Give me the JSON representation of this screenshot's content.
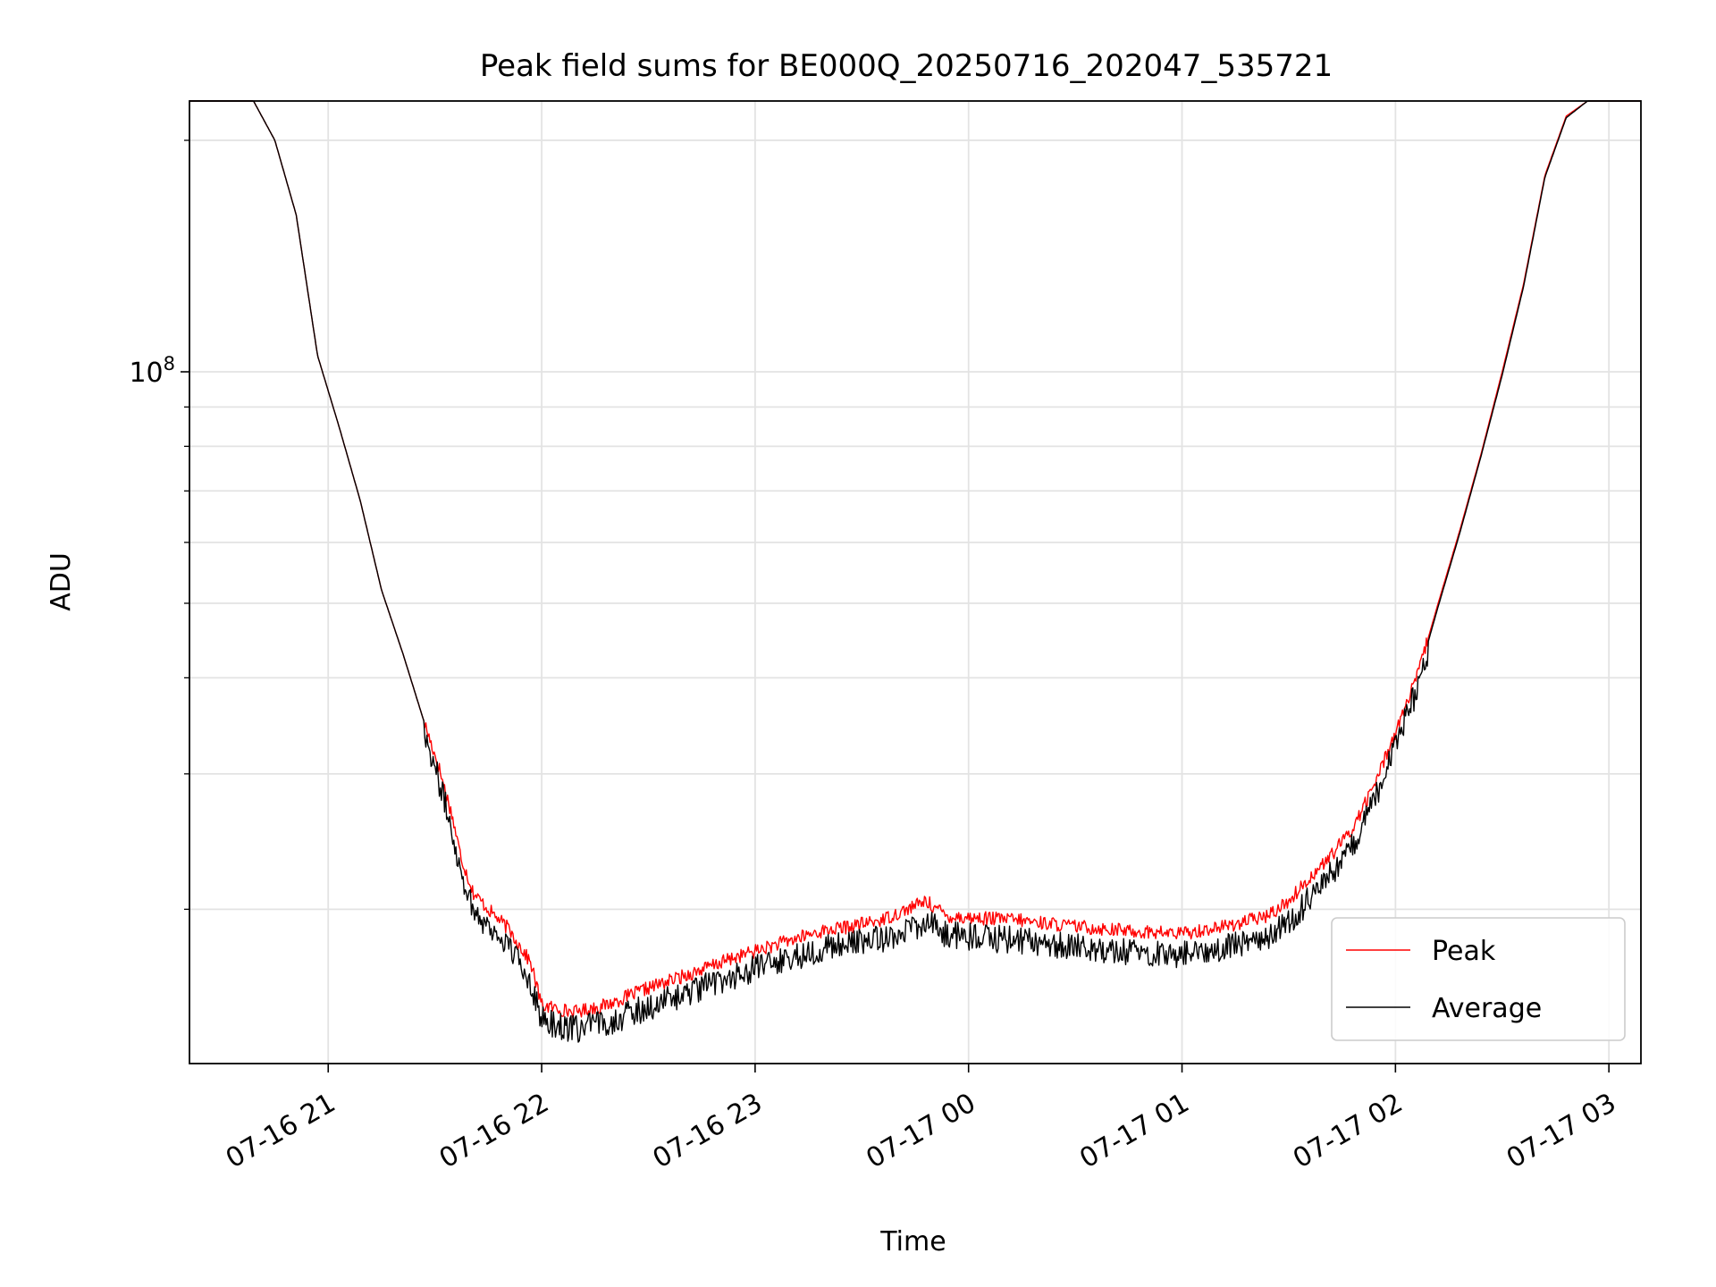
{
  "chart_data": {
    "type": "line",
    "title": "Peak field sums for BE000Q_20250716_202047_535721",
    "xlabel": "Time",
    "ylabel": "ADU",
    "x_ticks": [
      "07-16 21",
      "07-16 22",
      "07-16 23",
      "07-17 00",
      "07-17 01",
      "07-17 02",
      "07-17 03"
    ],
    "x_tick_hours": [
      21,
      22,
      23,
      24,
      25,
      26,
      27
    ],
    "xlim_hours": [
      20.35,
      27.15
    ],
    "yscale": "log",
    "ylim": [
      12600000,
      225000000
    ],
    "y_major_ticks": [
      {
        "value": 100000000,
        "label_base": "10",
        "label_exp": "8"
      }
    ],
    "y_minor_ticks": [
      20000000,
      30000000,
      40000000,
      50000000,
      60000000,
      70000000,
      80000000,
      90000000,
      200000000
    ],
    "grid": true,
    "legend_position": "lower right",
    "series": [
      {
        "name": "Peak",
        "color": "#ff0000",
        "noise": "low",
        "points": [
          [
            20.35,
            225000000
          ],
          [
            20.65,
            225000000
          ],
          [
            20.75,
            200000000
          ],
          [
            20.85,
            160000000
          ],
          [
            20.95,
            105000000
          ],
          [
            21.05,
            85000000
          ],
          [
            21.15,
            68000000
          ],
          [
            21.25,
            52000000
          ],
          [
            21.35,
            43000000
          ],
          [
            21.45,
            35000000
          ],
          [
            21.52,
            30500000
          ],
          [
            21.58,
            26500000
          ],
          [
            21.62,
            23500000
          ],
          [
            21.68,
            21000000
          ],
          [
            21.75,
            20000000
          ],
          [
            21.85,
            18800000
          ],
          [
            21.95,
            17000000
          ],
          [
            22.0,
            15000000
          ],
          [
            22.15,
            14700000
          ],
          [
            22.3,
            15000000
          ],
          [
            22.5,
            15800000
          ],
          [
            22.7,
            16500000
          ],
          [
            22.9,
            17300000
          ],
          [
            23.1,
            18000000
          ],
          [
            23.3,
            18700000
          ],
          [
            23.45,
            19000000
          ],
          [
            23.6,
            19400000
          ],
          [
            23.8,
            20500000
          ],
          [
            23.9,
            19600000
          ],
          [
            24.0,
            19500000
          ],
          [
            24.2,
            19400000
          ],
          [
            24.5,
            19000000
          ],
          [
            24.8,
            18700000
          ],
          [
            25.0,
            18600000
          ],
          [
            25.2,
            19000000
          ],
          [
            25.4,
            19600000
          ],
          [
            25.5,
            20500000
          ],
          [
            25.6,
            22000000
          ],
          [
            25.7,
            23500000
          ],
          [
            25.8,
            25500000
          ],
          [
            25.9,
            29000000
          ],
          [
            26.0,
            34000000
          ],
          [
            26.1,
            40000000
          ],
          [
            26.2,
            50000000
          ],
          [
            26.3,
            62000000
          ],
          [
            26.4,
            78000000
          ],
          [
            26.5,
            100000000
          ],
          [
            26.6,
            130000000
          ],
          [
            26.7,
            180000000
          ],
          [
            26.8,
            215000000
          ],
          [
            26.9,
            225000000
          ],
          [
            27.15,
            225000000
          ]
        ]
      },
      {
        "name": "Average",
        "color": "#000000",
        "noise": "high",
        "points": [
          [
            20.35,
            225000000
          ],
          [
            20.65,
            225000000
          ],
          [
            20.75,
            200000000
          ],
          [
            20.85,
            160000000
          ],
          [
            20.95,
            105000000
          ],
          [
            21.05,
            85000000
          ],
          [
            21.15,
            68000000
          ],
          [
            21.25,
            52000000
          ],
          [
            21.35,
            43000000
          ],
          [
            21.45,
            35000000
          ],
          [
            21.52,
            30000000
          ],
          [
            21.58,
            26000000
          ],
          [
            21.62,
            23000000
          ],
          [
            21.68,
            20500000
          ],
          [
            21.75,
            19500000
          ],
          [
            21.85,
            18300000
          ],
          [
            21.95,
            16500000
          ],
          [
            22.0,
            14700000
          ],
          [
            22.15,
            14300000
          ],
          [
            22.3,
            14600000
          ],
          [
            22.5,
            15300000
          ],
          [
            22.7,
            16000000
          ],
          [
            22.9,
            16800000
          ],
          [
            23.1,
            17500000
          ],
          [
            23.3,
            18200000
          ],
          [
            23.45,
            18500000
          ],
          [
            23.6,
            18800000
          ],
          [
            23.8,
            19700000
          ],
          [
            23.9,
            19000000
          ],
          [
            24.0,
            18900000
          ],
          [
            24.2,
            18700000
          ],
          [
            24.5,
            18300000
          ],
          [
            24.8,
            18000000
          ],
          [
            25.0,
            17900000
          ],
          [
            25.2,
            18300000
          ],
          [
            25.4,
            18900000
          ],
          [
            25.5,
            19700000
          ],
          [
            25.6,
            21200000
          ],
          [
            25.7,
            22800000
          ],
          [
            25.8,
            24800000
          ],
          [
            25.9,
            28300000
          ],
          [
            26.0,
            33500000
          ],
          [
            26.1,
            39500000
          ],
          [
            26.2,
            49500000
          ],
          [
            26.3,
            61500000
          ],
          [
            26.4,
            77500000
          ],
          [
            26.5,
            99000000
          ],
          [
            26.6,
            129000000
          ],
          [
            26.7,
            179000000
          ],
          [
            26.8,
            214000000
          ],
          [
            26.9,
            225000000
          ],
          [
            27.15,
            225000000
          ]
        ]
      }
    ]
  }
}
